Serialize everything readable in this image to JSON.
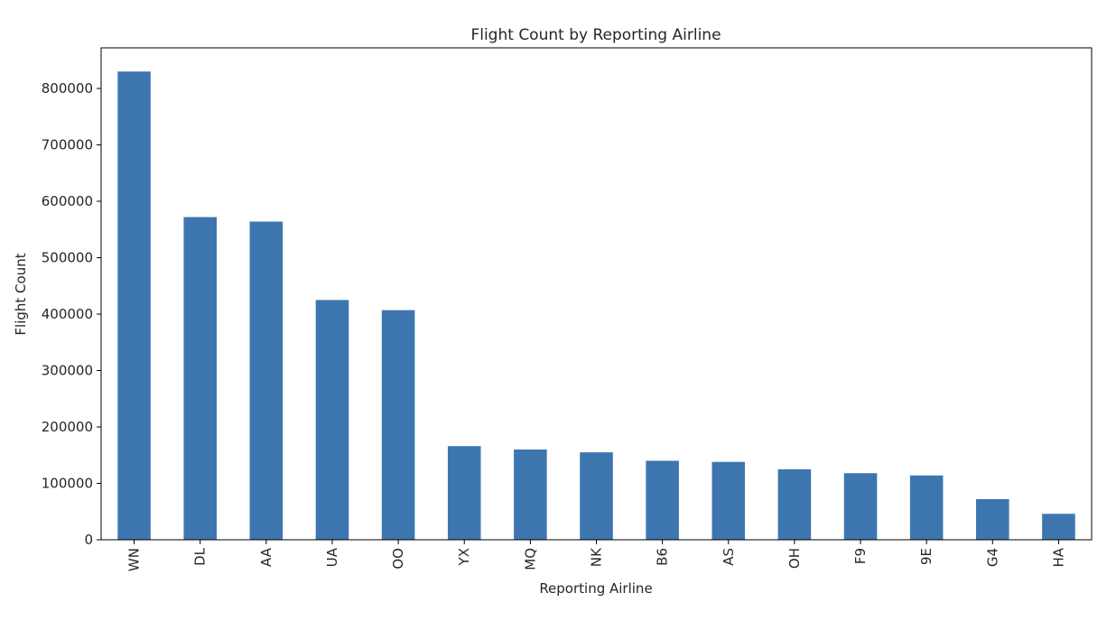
{
  "chart_data": {
    "type": "bar",
    "title": "Flight Count by Reporting Airline",
    "xlabel": "Reporting Airline",
    "ylabel": "Flight Count",
    "categories": [
      "WN",
      "DL",
      "AA",
      "UA",
      "OO",
      "YX",
      "MQ",
      "NK",
      "B6",
      "AS",
      "OH",
      "F9",
      "9E",
      "G4",
      "HA"
    ],
    "values": [
      830000,
      572000,
      564000,
      425000,
      407000,
      166000,
      160000,
      155000,
      140000,
      138000,
      125000,
      118000,
      114000,
      72000,
      46000
    ],
    "yticks": [
      "0",
      "100000",
      "200000",
      "300000",
      "400000",
      "500000",
      "600000",
      "700000",
      "800000"
    ],
    "ytick_values": [
      0,
      100000,
      200000,
      300000,
      400000,
      500000,
      600000,
      700000,
      800000
    ],
    "ylim": [
      0,
      872000
    ],
    "bar_color": "#3d76af",
    "grid": false,
    "legend": "none"
  }
}
